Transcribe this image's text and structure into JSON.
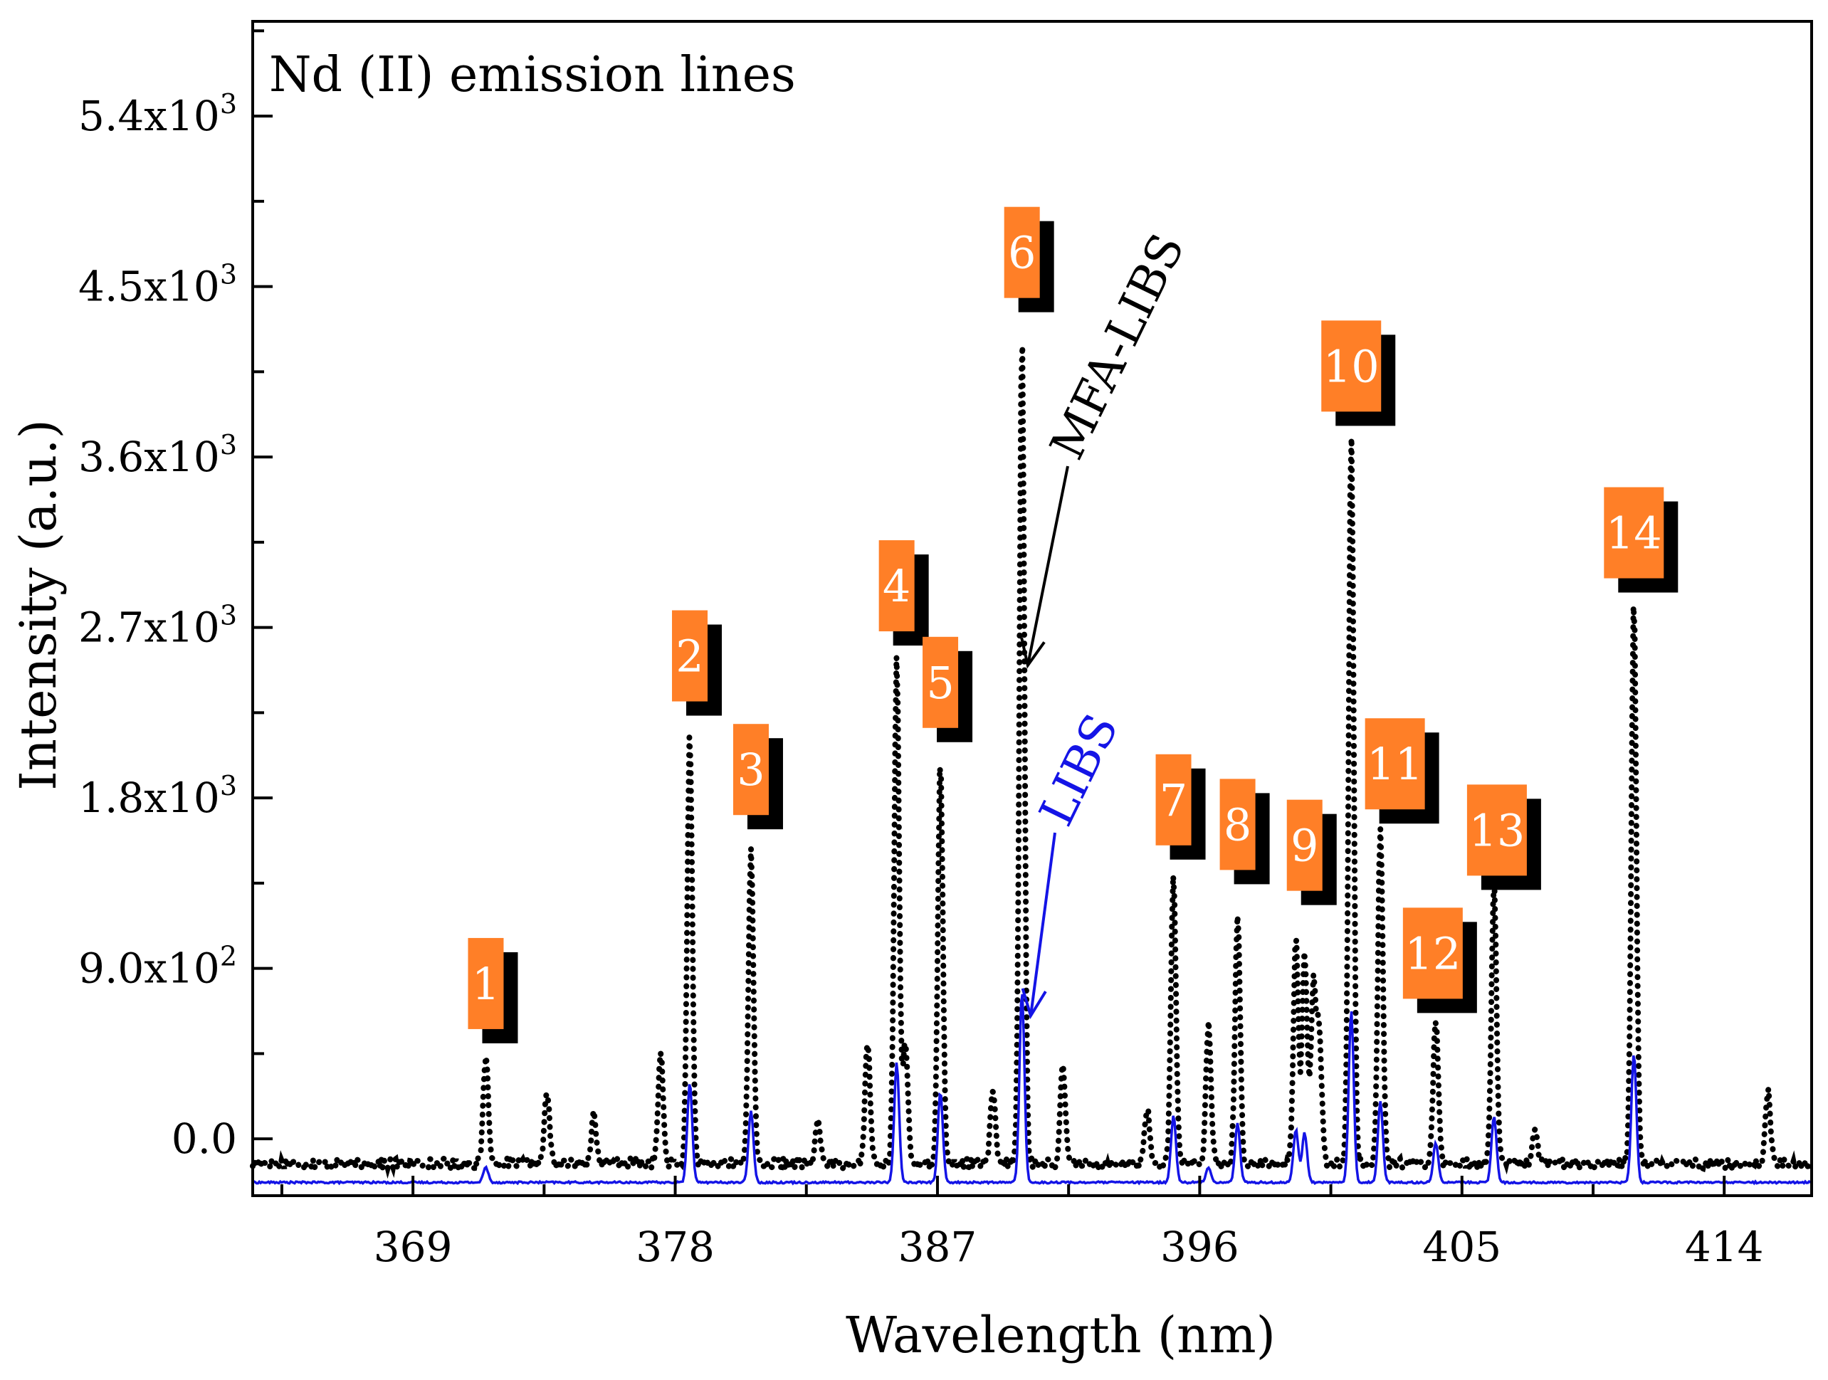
{
  "chart_data": {
    "type": "line",
    "title": "Nd (II) emission lines",
    "xlabel": "Wavelength (nm)",
    "ylabel": "Intensity (a.u.)",
    "xlim": [
      363.5,
      417
    ],
    "ylim": [
      -300,
      5900
    ],
    "x_ticks": [
      369,
      378,
      387,
      396,
      405,
      414
    ],
    "x_tick_labels": [
      "369",
      "378",
      "387",
      "396",
      "405",
      "414"
    ],
    "y_ticks": [
      0,
      900,
      1800,
      2700,
      3600,
      4500,
      5400
    ],
    "y_tick_labels": [
      {
        "base": "0.0",
        "exp": ""
      },
      {
        "base": "9.0x10",
        "exp": "2"
      },
      {
        "base": "1.8x10",
        "exp": "3"
      },
      {
        "base": "2.7x10",
        "exp": "3"
      },
      {
        "base": "3.6x10",
        "exp": "3"
      },
      {
        "base": "4.5x10",
        "exp": "3"
      },
      {
        "base": "5.4x10",
        "exp": "3"
      }
    ],
    "grid": false,
    "series": [
      {
        "name": "MFA-LIBS",
        "style": "dotted",
        "color": "#000000",
        "baseline": -130,
        "peaks": [
          {
            "x": 371.5,
            "y": 450
          },
          {
            "x": 373.6,
            "y": 250
          },
          {
            "x": 375.2,
            "y": 130
          },
          {
            "x": 377.5,
            "y": 450
          },
          {
            "x": 378.5,
            "y": 2150
          },
          {
            "x": 380.6,
            "y": 1550
          },
          {
            "x": 382.9,
            "y": 100
          },
          {
            "x": 384.6,
            "y": 520
          },
          {
            "x": 385.6,
            "y": 2550
          },
          {
            "x": 385.9,
            "y": 500
          },
          {
            "x": 387.1,
            "y": 2000
          },
          {
            "x": 388.9,
            "y": 250
          },
          {
            "x": 389.9,
            "y": 4250
          },
          {
            "x": 391.3,
            "y": 380
          },
          {
            "x": 394.2,
            "y": 170
          },
          {
            "x": 395.1,
            "y": 1400
          },
          {
            "x": 396.3,
            "y": 600
          },
          {
            "x": 397.3,
            "y": 1200
          },
          {
            "x": 399.3,
            "y": 1050
          },
          {
            "x": 399.6,
            "y": 1000
          },
          {
            "x": 399.9,
            "y": 800
          },
          {
            "x": 400.1,
            "y": 560
          },
          {
            "x": 401.2,
            "y": 3750
          },
          {
            "x": 402.2,
            "y": 1650
          },
          {
            "x": 404.1,
            "y": 650
          },
          {
            "x": 406.1,
            "y": 1350
          },
          {
            "x": 407.5,
            "y": 60
          },
          {
            "x": 410.9,
            "y": 2850
          },
          {
            "x": 415.5,
            "y": 250
          }
        ]
      },
      {
        "name": "LIBS",
        "style": "solid",
        "color": "#1414e6",
        "baseline": -230,
        "peaks": [
          {
            "x": 371.5,
            "y": -150
          },
          {
            "x": 378.5,
            "y": 300
          },
          {
            "x": 380.6,
            "y": 150
          },
          {
            "x": 385.6,
            "y": 400
          },
          {
            "x": 387.1,
            "y": 250
          },
          {
            "x": 389.9,
            "y": 780
          },
          {
            "x": 395.1,
            "y": 120
          },
          {
            "x": 396.3,
            "y": -150
          },
          {
            "x": 397.3,
            "y": 80
          },
          {
            "x": 399.3,
            "y": 50
          },
          {
            "x": 399.6,
            "y": 30
          },
          {
            "x": 401.2,
            "y": 680
          },
          {
            "x": 402.2,
            "y": 200
          },
          {
            "x": 404.1,
            "y": -20
          },
          {
            "x": 406.1,
            "y": 120
          },
          {
            "x": 410.9,
            "y": 450
          }
        ]
      }
    ],
    "peak_labels": [
      {
        "text": "1",
        "x": 371.5,
        "y": 820
      },
      {
        "text": "2",
        "x": 378.5,
        "y": 2550
      },
      {
        "text": "3",
        "x": 380.6,
        "y": 1950
      },
      {
        "text": "4",
        "x": 385.6,
        "y": 2920
      },
      {
        "text": "5",
        "x": 387.1,
        "y": 2410
      },
      {
        "text": "6",
        "x": 389.9,
        "y": 4680
      },
      {
        "text": "7",
        "x": 395.1,
        "y": 1790
      },
      {
        "text": "8",
        "x": 397.3,
        "y": 1660
      },
      {
        "text": "9",
        "x": 399.6,
        "y": 1550
      },
      {
        "text": "10",
        "x": 401.2,
        "y": 4080
      },
      {
        "text": "11",
        "x": 402.7,
        "y": 1980
      },
      {
        "text": "12",
        "x": 404.0,
        "y": 980
      },
      {
        "text": "13",
        "x": 406.2,
        "y": 1630
      },
      {
        "text": "14",
        "x": 410.9,
        "y": 3200
      }
    ],
    "annotations": [
      {
        "text": "MFA-LIBS",
        "color": "#000000",
        "arrow_to": {
          "x": 390.1,
          "y": 2500
        }
      },
      {
        "text": "LIBS",
        "color": "#1414e6",
        "arrow_to": {
          "x": 390.2,
          "y": 650
        }
      }
    ],
    "colors": {
      "label_fill": "#ff7f27",
      "label_shadow": "#000000",
      "axis": "#000000"
    }
  }
}
